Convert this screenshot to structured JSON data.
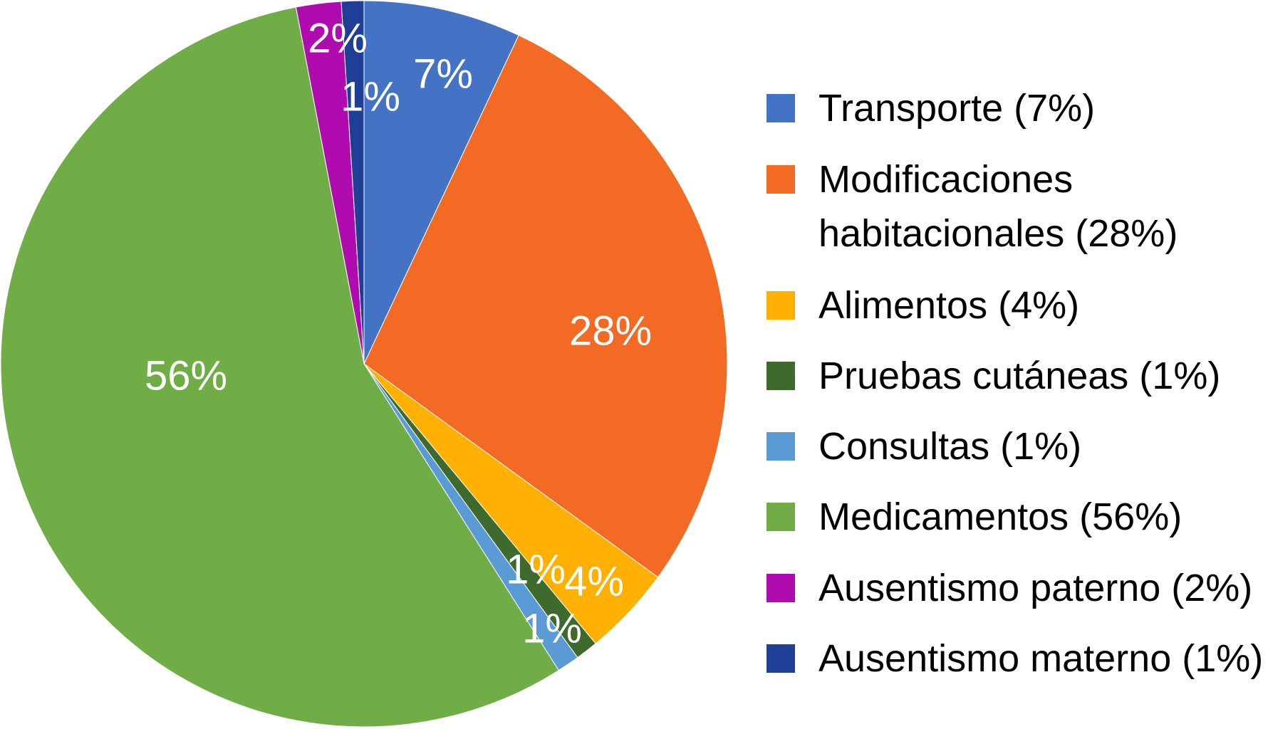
{
  "chart_data": {
    "type": "pie",
    "title": "",
    "start": "top",
    "direction": "clockwise",
    "slices": [
      {
        "name": "Transporte",
        "value": 7,
        "label": "7%",
        "legend": "Transporte (7%)",
        "color": "#4472C4"
      },
      {
        "name": "Modificaciones habitacionales",
        "value": 28,
        "label": "28%",
        "legend": "Modificaciones\nhabitacionales (28%)",
        "color": "#F26A24"
      },
      {
        "name": "Alimentos",
        "value": 4,
        "label": "4%",
        "legend": "Alimentos (4%)",
        "color": "#FFB000"
      },
      {
        "name": "Pruebas cutáneas",
        "value": 1,
        "label": "1%",
        "legend": "Pruebas cutáneas (1%)",
        "color": "#3E6A2E"
      },
      {
        "name": "Consultas",
        "value": 1,
        "label": "1%",
        "legend": "Consultas (1%)",
        "color": "#5B9BD5"
      },
      {
        "name": "Medicamentos",
        "value": 56,
        "label": "56%",
        "legend": "Medicamentos (56%)",
        "color": "#70AD47"
      },
      {
        "name": "Ausentismo paterno",
        "value": 2,
        "label": "2%",
        "legend": "Ausentismo paterno (2%)",
        "color": "#B00BAE"
      },
      {
        "name": "Ausentismo materno",
        "value": 1,
        "label": "1%",
        "legend": "Ausentismo materno (1%)",
        "color": "#1F3F96"
      }
    ],
    "legend_position": "right"
  }
}
